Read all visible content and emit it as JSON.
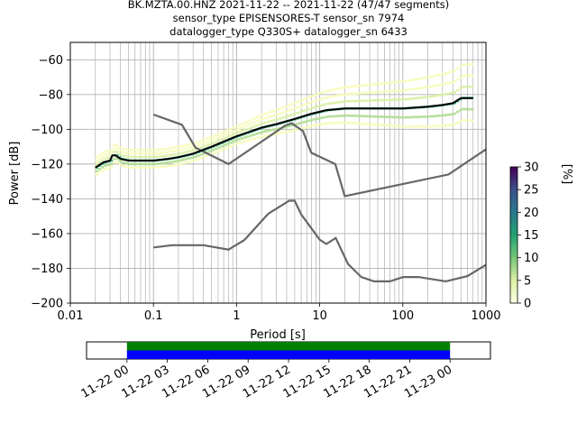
{
  "header": {
    "line1": "BK.MZTA.00.HNZ   2021-11-22 -- 2021-11-22  (47/47 segments)",
    "line2": "sensor_type EPISENSORES-T sensor_sn 7974",
    "line3": "datalogger_type Q330S+ datalogger_sn 6433"
  },
  "chart_data": [
    {
      "type": "heatmap",
      "title": "BK.MZTA.00.HNZ   2021-11-22 -- 2021-11-22  (47/47 segments)",
      "xlabel": "Period [s]",
      "ylabel": "Power [dB]",
      "xscale": "log",
      "xlim": [
        0.01,
        1000
      ],
      "ylim": [
        -200,
        -50
      ],
      "xticks": [
        "0.01",
        "0.1",
        "1",
        "10",
        "100",
        "1000"
      ],
      "yticks": [
        "−60",
        "−80",
        "−100",
        "−120",
        "−140",
        "−160",
        "−180",
        "−200"
      ],
      "grid": true,
      "colorbar": {
        "label": "[%]",
        "range": [
          0,
          30
        ],
        "ticks": [
          "0",
          "5",
          "10",
          "15",
          "20",
          "25",
          "30"
        ]
      },
      "noise_models": [
        {
          "x": [
            0.1,
            0.22,
            0.32,
            0.8,
            3.8,
            4.6,
            6.3,
            7.9,
            15.4,
            20,
            354.8,
            1000
          ],
          "y": [
            -91.5,
            -97.4,
            -110.5,
            -120,
            -98,
            -96.5,
            -101,
            -113.5,
            -120,
            -138.5,
            -126,
            -111.5
          ]
        },
        {
          "x": [
            0.1,
            0.17,
            0.4,
            0.8,
            1.24,
            2.4,
            4.3,
            5,
            6,
            10,
            12,
            15.6,
            21.9,
            31.6,
            45,
            70,
            101,
            154,
            328,
            600,
            1000
          ],
          "y": [
            -168,
            -166.7,
            -166.7,
            -169.2,
            -163.7,
            -148.6,
            -141.1,
            -141.1,
            -149,
            -163.5,
            -166,
            -162.5,
            -177.5,
            -185,
            -187.5,
            -187.5,
            -185,
            -185,
            -187.5,
            -184.5,
            -178
          ]
        }
      ],
      "mode": {
        "x": [
          0.02,
          0.025,
          0.03,
          0.032,
          0.035,
          0.04,
          0.05,
          0.07,
          0.1,
          0.15,
          0.2,
          0.3,
          0.5,
          1,
          2,
          3,
          5,
          8,
          12,
          20,
          30,
          50,
          100,
          200,
          300,
          400,
          500,
          700
        ],
        "y": [
          -122,
          -119,
          -118,
          -115,
          -115,
          -117,
          -118,
          -118,
          -118,
          -117,
          -116,
          -114,
          -110,
          -104,
          -99,
          -97,
          -94,
          -91,
          -89,
          -88,
          -88,
          -88,
          -88,
          -87,
          -86,
          -85,
          -82,
          -82
        ]
      },
      "spread_db": [
        {
          "dy": 4,
          "percent": 3
        },
        {
          "dy": -4,
          "percent": 3
        },
        {
          "dy": 2,
          "percent": 7
        },
        {
          "dy": -2,
          "percent": 9
        },
        {
          "dy": 0,
          "percent": 18
        },
        {
          "dy": 6,
          "percent": 2
        }
      ]
    },
    {
      "type": "timeline",
      "xticks": [
        "11-22 00",
        "11-22 03",
        "11-22 06",
        "11-22 09",
        "11-22 12",
        "11-22 15",
        "11-22 18",
        "11-22 21",
        "11-23 00"
      ],
      "xlim_hours": [
        -3,
        27
      ],
      "bars": [
        {
          "name": "green",
          "start_hour": 0,
          "end_hour": 24,
          "color": "#008000"
        },
        {
          "name": "blue",
          "start_hour": 0,
          "end_hour": 24,
          "color": "#0000ff"
        }
      ]
    }
  ]
}
